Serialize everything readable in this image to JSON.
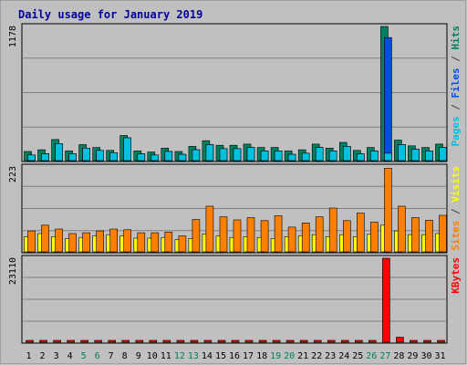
{
  "chart_data": {
    "type": "bar",
    "title": "Daily usage for January 2019",
    "categories": [
      "1",
      "2",
      "3",
      "4",
      "5",
      "6",
      "7",
      "8",
      "9",
      "10",
      "11",
      "12",
      "13",
      "14",
      "15",
      "16",
      "17",
      "18",
      "19",
      "20",
      "21",
      "22",
      "23",
      "24",
      "25",
      "26",
      "27",
      "28",
      "29",
      "30",
      "31"
    ],
    "weekend_days": [
      "5",
      "6",
      "12",
      "13",
      "19",
      "20",
      "26",
      "27"
    ],
    "panels": [
      {
        "name": "hits-files-pages",
        "max_label": "1178",
        "max": 1178,
        "right_label": [
          {
            "text": "Pages",
            "color": "#00c0e0"
          },
          {
            "text": " / ",
            "color": "#404040"
          },
          {
            "text": "Files",
            "color": "#0050e0"
          },
          {
            "text": " / ",
            "color": "#404040"
          },
          {
            "text": "Hits",
            "color": "#008060"
          }
        ],
        "series": [
          {
            "name": "Hits",
            "color": "#008060",
            "values": [
              80,
              95,
              185,
              85,
              140,
              115,
              90,
              220,
              85,
              75,
              110,
              80,
              125,
              175,
              135,
              135,
              145,
              115,
              115,
              85,
              95,
              145,
              110,
              160,
              90,
              115,
              1178,
              180,
              130,
              115,
              145
            ]
          },
          {
            "name": "Files",
            "color": "#0050e0",
            "values": [
              50,
              60,
              150,
              60,
              110,
              90,
              70,
              200,
              60,
              50,
              80,
              55,
              95,
              140,
              105,
              105,
              115,
              85,
              85,
              55,
              65,
              115,
              85,
              125,
              60,
              85,
              1080,
              140,
              100,
              85,
              115
            ]
          },
          {
            "name": "Pages",
            "color": "#00c0e0",
            "values": [
              50,
              60,
              150,
              60,
              110,
              90,
              70,
              200,
              60,
              50,
              80,
              55,
              95,
              140,
              105,
              105,
              115,
              85,
              85,
              55,
              65,
              115,
              85,
              125,
              60,
              85,
              65,
              140,
              100,
              85,
              115
            ]
          }
        ]
      },
      {
        "name": "visits-sites",
        "max_label": "223",
        "max": 223,
        "right_label": [
          {
            "text": "Sites",
            "color": "#ff8000"
          },
          {
            "text": " / ",
            "color": "#404040"
          },
          {
            "text": "Visits",
            "color": "#ffff00"
          }
        ],
        "series": [
          {
            "name": "Visits",
            "color": "#ffff00",
            "values": [
              40,
              48,
              40,
              35,
              38,
              42,
              45,
              42,
              36,
              36,
              38,
              32,
              35,
              47,
              42,
              38,
              40,
              38,
              35,
              40,
              42,
              45,
              40,
              45,
              40,
              46,
              70,
              55,
              45,
              45,
              48
            ]
          },
          {
            "name": "Sites",
            "color": "#ff8000",
            "values": [
              55,
              70,
              60,
              48,
              50,
              55,
              60,
              58,
              50,
              50,
              52,
              42,
              85,
              120,
              92,
              84,
              90,
              82,
              95,
              65,
              76,
              92,
              115,
              82,
              102,
              78,
              220,
              120,
              90,
              83,
              96
            ]
          }
        ]
      },
      {
        "name": "kbytes",
        "max_label": "23110",
        "max": 23110,
        "right_label": [
          {
            "text": "KBytes",
            "color": "#ff0000"
          }
        ],
        "series": [
          {
            "name": "KBytes",
            "color": "#ff0000",
            "values": [
              30,
              30,
              30,
              30,
              30,
              30,
              30,
              30,
              30,
              30,
              30,
              30,
              30,
              30,
              30,
              30,
              30,
              30,
              30,
              30,
              30,
              30,
              30,
              30,
              30,
              30,
              23110,
              1380,
              30,
              30,
              30
            ]
          }
        ]
      }
    ]
  }
}
